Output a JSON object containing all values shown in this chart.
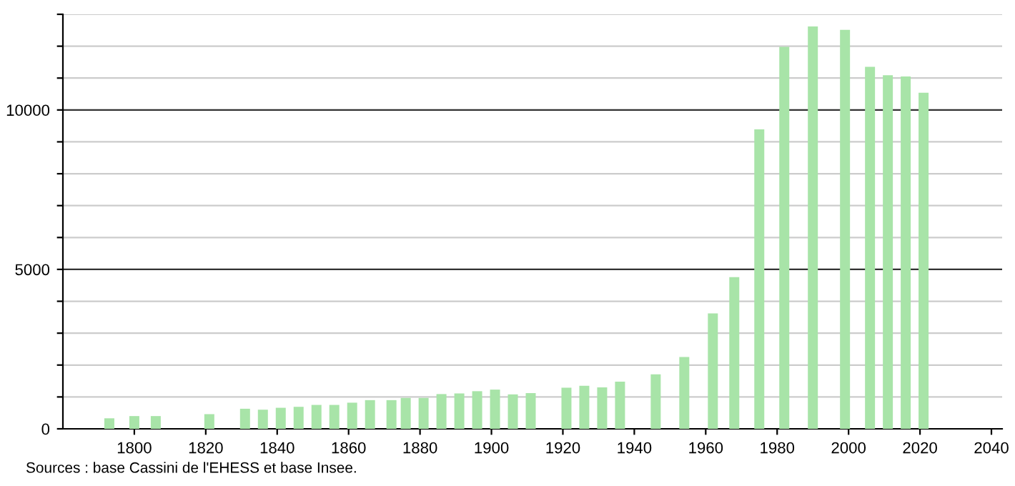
{
  "chart_data": {
    "type": "bar",
    "x": [
      1793,
      1800,
      1806,
      1821,
      1831,
      1836,
      1841,
      1846,
      1851,
      1856,
      1861,
      1866,
      1872,
      1876,
      1881,
      1886,
      1891,
      1896,
      1901,
      1906,
      1911,
      1921,
      1926,
      1931,
      1936,
      1946,
      1954,
      1962,
      1968,
      1975,
      1982,
      1990,
      1999,
      2006,
      2011,
      2016,
      2021
    ],
    "values": [
      330,
      400,
      400,
      460,
      630,
      600,
      660,
      690,
      750,
      750,
      820,
      900,
      900,
      970,
      970,
      1090,
      1110,
      1180,
      1230,
      1080,
      1120,
      1290,
      1350,
      1300,
      1480,
      1710,
      2250,
      3620,
      4760,
      9390,
      11980,
      12620,
      12510,
      11350,
      11090,
      11050,
      10540
    ],
    "color": "#a8e4a8",
    "xlim": [
      1780,
      2043
    ],
    "xticks": [
      1800,
      1820,
      1840,
      1860,
      1880,
      1900,
      1920,
      1940,
      1960,
      1980,
      2000,
      2020,
      2040
    ],
    "ylim": [
      0,
      13000
    ],
    "yticks": [
      0,
      {
        "value": 1000,
        "label": null
      },
      {
        "value": 2000,
        "label": null
      },
      {
        "value": 3000,
        "label": null
      },
      {
        "value": 4000,
        "label": null
      },
      5000,
      {
        "value": 6000,
        "label": null
      },
      {
        "value": 7000,
        "label": null
      },
      {
        "value": 8000,
        "label": null
      },
      {
        "value": 9000,
        "label": null
      },
      10000,
      {
        "value": 11000,
        "label": null
      },
      {
        "value": 12000,
        "label": null
      },
      {
        "value": 13000,
        "label": null
      }
    ],
    "grid": "y",
    "annotations": [
      "Sources : base Cassini de l'EHESS et base Insee."
    ]
  }
}
